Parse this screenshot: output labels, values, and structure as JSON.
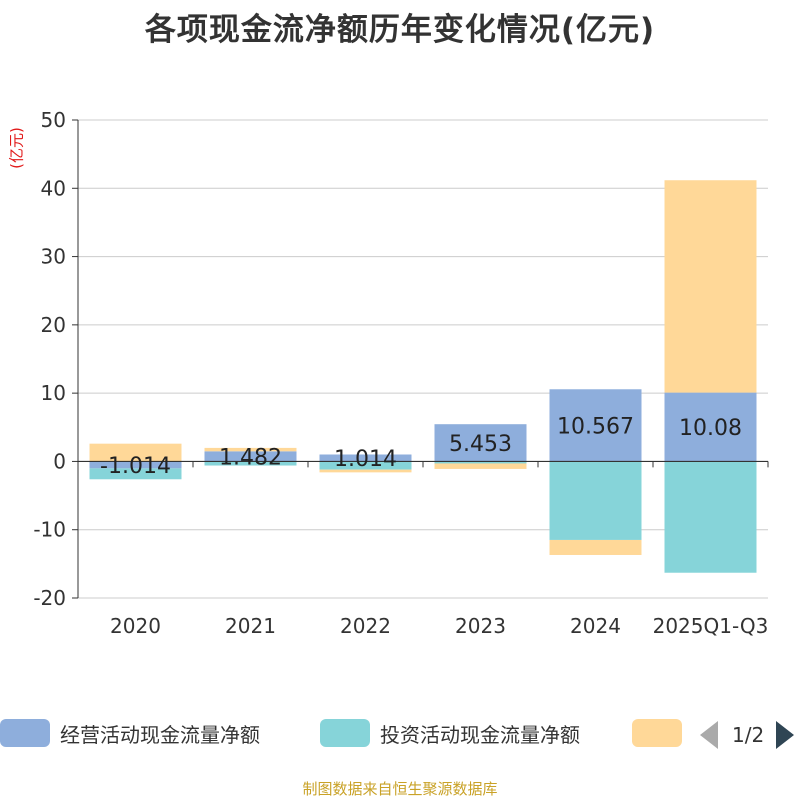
{
  "title": "各项现金流净额历年变化情况(亿元)",
  "unit_label": "(亿元)",
  "source": "制图数据来自恒生聚源数据库",
  "legend": {
    "items": [
      {
        "label": "经营活动现金流量净额",
        "color": "#8eaedc"
      },
      {
        "label": "投资活动现金流量净额",
        "color": "#86d4d9"
      },
      {
        "label": "",
        "color": "#ffd898"
      }
    ],
    "page": "1/2"
  },
  "chart_data": {
    "type": "bar",
    "stacked": true,
    "title": "各项现金流净额历年变化情况(亿元)",
    "ylabel": "(亿元)",
    "ylim": [
      -20,
      50
    ],
    "yticks": [
      -20,
      -10,
      0,
      10,
      20,
      30,
      40,
      50
    ],
    "categories": [
      "2020",
      "2021",
      "2022",
      "2023",
      "2024",
      "2025Q1-Q3"
    ],
    "series": [
      {
        "name": "经营活动现金流量净额",
        "color": "#8eaedc",
        "values": [
          -1.014,
          1.482,
          1.014,
          5.453,
          10.567,
          10.08
        ],
        "labels": [
          "-1.014",
          "1.482",
          "1.014",
          "5.453",
          "10.567",
          "10.08"
        ]
      },
      {
        "name": "投资活动现金流量净额",
        "color": "#86d4d9",
        "values": [
          -1.6,
          -0.6,
          -1.2,
          -0.3,
          -11.5,
          -16.3
        ]
      },
      {
        "name": "",
        "color": "#ffd898",
        "values": [
          2.6,
          0.5,
          -0.4,
          -0.8,
          -2.2,
          31.1
        ]
      }
    ]
  }
}
